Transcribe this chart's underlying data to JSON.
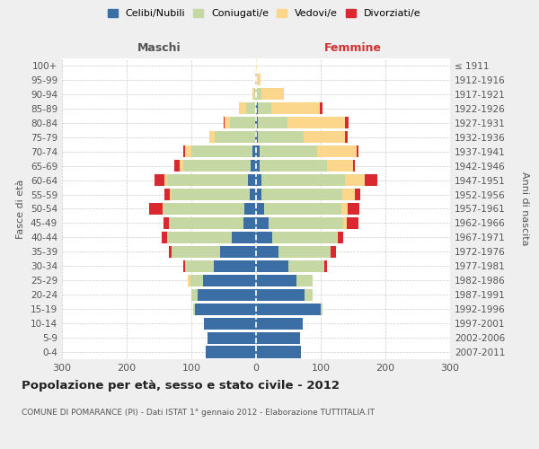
{
  "age_groups": [
    "0-4",
    "5-9",
    "10-14",
    "15-19",
    "20-24",
    "25-29",
    "30-34",
    "35-39",
    "40-44",
    "45-49",
    "50-54",
    "55-59",
    "60-64",
    "65-69",
    "70-74",
    "75-79",
    "80-84",
    "85-89",
    "90-94",
    "95-99",
    "100+"
  ],
  "birth_years": [
    "2007-2011",
    "2002-2006",
    "1997-2001",
    "1992-1996",
    "1987-1991",
    "1982-1986",
    "1977-1981",
    "1972-1976",
    "1967-1971",
    "1962-1966",
    "1957-1961",
    "1952-1956",
    "1947-1951",
    "1942-1946",
    "1937-1941",
    "1932-1936",
    "1927-1931",
    "1922-1926",
    "1917-1921",
    "1912-1916",
    "≤ 1911"
  ],
  "maschi_celibi": [
    78,
    75,
    80,
    95,
    90,
    82,
    65,
    55,
    38,
    20,
    18,
    10,
    12,
    8,
    5,
    2,
    2,
    0,
    0,
    0,
    0
  ],
  "maschi_coniugati": [
    0,
    0,
    0,
    2,
    10,
    20,
    45,
    75,
    100,
    115,
    125,
    120,
    125,
    105,
    95,
    62,
    38,
    15,
    3,
    1,
    0
  ],
  "maschi_vedovi": [
    0,
    0,
    0,
    0,
    0,
    3,
    0,
    0,
    0,
    0,
    2,
    3,
    5,
    5,
    10,
    8,
    8,
    12,
    3,
    1,
    0
  ],
  "maschi_divorziati": [
    0,
    0,
    0,
    0,
    0,
    0,
    2,
    5,
    8,
    8,
    20,
    8,
    15,
    8,
    2,
    0,
    2,
    0,
    0,
    0,
    0
  ],
  "femmine_nubili": [
    70,
    68,
    72,
    100,
    75,
    62,
    50,
    35,
    25,
    20,
    12,
    8,
    8,
    5,
    5,
    3,
    3,
    3,
    0,
    0,
    0
  ],
  "femmine_coniugate": [
    0,
    0,
    0,
    3,
    12,
    25,
    55,
    80,
    100,
    115,
    120,
    125,
    130,
    105,
    90,
    70,
    45,
    20,
    8,
    2,
    0
  ],
  "femmine_vedove": [
    0,
    0,
    0,
    0,
    0,
    0,
    0,
    0,
    2,
    5,
    10,
    20,
    30,
    40,
    60,
    65,
    90,
    75,
    35,
    5,
    1
  ],
  "femmine_divorziate": [
    0,
    0,
    0,
    0,
    0,
    0,
    5,
    8,
    8,
    18,
    18,
    8,
    20,
    3,
    3,
    3,
    5,
    5,
    0,
    0,
    0
  ],
  "color_celibi": "#3a6ea5",
  "color_coniugati": "#c5d8a4",
  "color_vedovi": "#fcd68a",
  "color_divorziati": "#d9282f",
  "legend_labels": [
    "Celibi/Nubili",
    "Coniugati/e",
    "Vedovi/e",
    "Divorziati/e"
  ],
  "title": "Popolazione per età, sesso e stato civile - 2012",
  "subtitle": "COMUNE DI POMARANCE (PI) - Dati ISTAT 1° gennaio 2012 - Elaborazione TUTTITALIA.IT",
  "label_maschi": "Maschi",
  "label_femmine": "Femmine",
  "ylabel_left": "Fasce di età",
  "ylabel_right": "Anni di nascita",
  "xlim": 300,
  "bg_color": "#efefef",
  "plot_bg": "#ffffff"
}
